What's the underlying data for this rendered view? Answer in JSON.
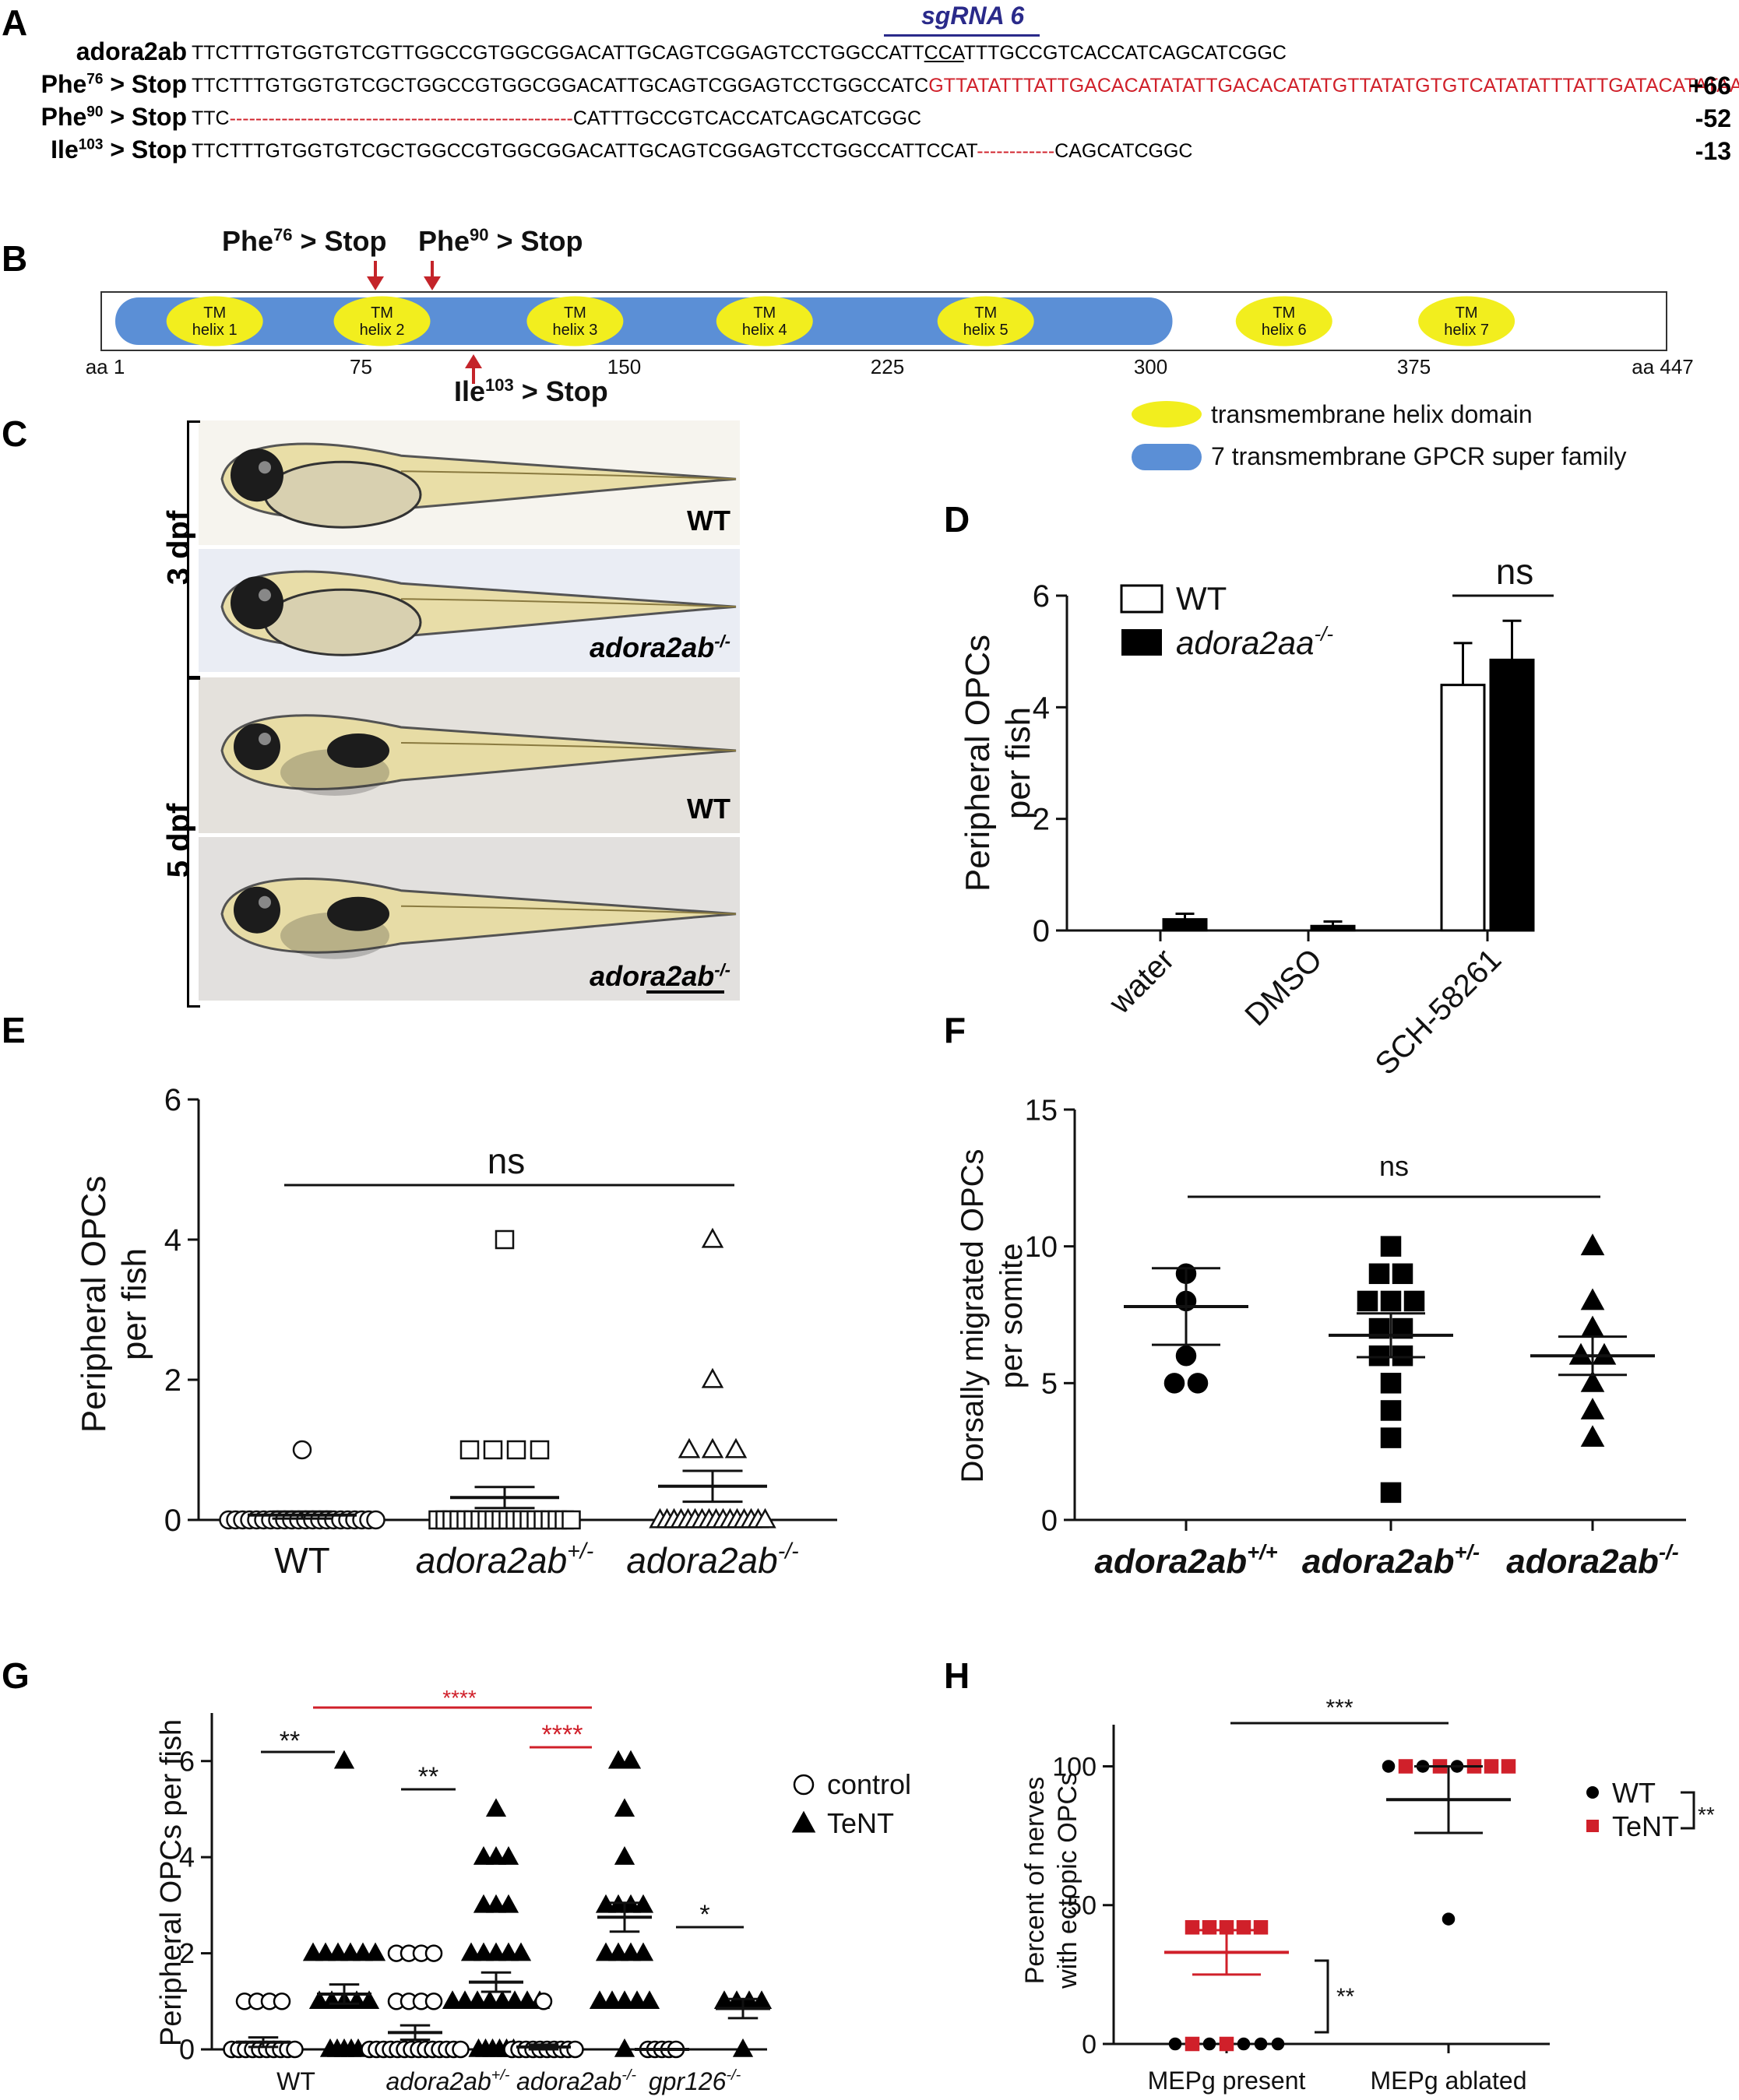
{
  "panelA": {
    "label": "A",
    "sgrna": "sgRNA 6",
    "rows": [
      {
        "name": "adora2ab",
        "sup": "",
        "suffix": "",
        "seq": "TTCTTTGTGGTGTCGTTGGCCGTGGCGGACATTGCAGTCGGAGTCCTGGCCATT",
        "pam": "CCA",
        "seq2": "TTTGCCGTCACCATCAGCATCGGC",
        "count": ""
      },
      {
        "name": "Phe",
        "sup": "76",
        "suffix": " > Stop",
        "seq": "TTCTTTGTGGTGTCGCTGGCCGTGGCGGACATTGCAGTCGGAGTCCTGGCCATC",
        "ins": "GTTATATTTATTGACACATATATTGACACATATGTTATATGTG",
        "seq2": "TCATATATTTATTGATACATATAA",
        "seq3": "CAT",
        "count": "+66"
      },
      {
        "name": "Phe",
        "sup": "90",
        "suffix": " > Stop",
        "seq": "TTC",
        "del": "-----------------------------------------------------",
        "seq2": "CATTTGCCGTCACCATCAGCATCGGC",
        "count": "-52"
      },
      {
        "name": "Ile",
        "sup": "103",
        "suffix": " > Stop",
        "seq": "TTCTTTGTGGTGTCGCTGGCCGTGGCGGACATTGCAGTCGGAGTCCTGGCCATTCCAT",
        "del": "------------",
        "seq2": "CAGCATCGGC",
        "count": "-13"
      }
    ]
  },
  "panelB": {
    "label": "B",
    "arrows": [
      {
        "name": "Phe",
        "sup": "76",
        "suffix": " > Stop"
      },
      {
        "name": "Phe",
        "sup": "90",
        "suffix": " > Stop"
      },
      {
        "name": "Ile",
        "sup": "103",
        "suffix": " > Stop"
      }
    ],
    "helices": [
      "TM\nhelix 1",
      "TM\nhelix 2",
      "TM\nhelix 3",
      "TM\nhelix 4",
      "TM\nhelix 5",
      "TM\nhelix 6",
      "TM\nhelix 7"
    ],
    "ticks": [
      "aa 1",
      "75",
      "150",
      "225",
      "300",
      "375",
      "aa 447"
    ],
    "legend": [
      "transmembrane helix domain",
      "7 transmembrane GPCR super family"
    ],
    "colors": {
      "helix": "#f2ee1e",
      "gpcr": "#5b8fd6"
    }
  },
  "panelC": {
    "label": "C",
    "groups": [
      "3 dpf",
      "5 dpf"
    ],
    "images": [
      "WT",
      "adora2ab-/-",
      "WT",
      "adora2ab-/-"
    ],
    "image_base": [
      "WT",
      "adora2ab",
      "WT",
      "adora2ab"
    ],
    "image_sup": [
      "",
      "-/-",
      "",
      "-/-"
    ]
  },
  "panelD": {
    "label": "D",
    "chart_data": {
      "type": "bar",
      "ylabel": "Peripheral OPCs\nper fish",
      "ylim": [
        0,
        6
      ],
      "yticks": [
        "0",
        "2",
        "4",
        "6"
      ],
      "categories": [
        "water",
        "DMSO",
        "SCH-58261"
      ],
      "series": [
        {
          "name": "WT",
          "values": [
            0,
            0,
            4.4
          ],
          "errors": [
            0,
            0,
            0.75
          ]
        },
        {
          "name": "adora2aa-/-",
          "values": [
            0.2,
            0.08,
            4.85
          ],
          "errors": [
            0.1,
            0.08,
            0.7
          ]
        }
      ],
      "legend": [
        "WT",
        "adora2aa",
        "-/-"
      ],
      "annotation": "ns"
    }
  },
  "panelE": {
    "label": "E",
    "chart_data": {
      "type": "scatter",
      "ylabel": "Peripheral OPCs\nper fish",
      "ylim": [
        0,
        6
      ],
      "yticks": [
        "0",
        "2",
        "4",
        "6"
      ],
      "categories": [
        "WT",
        "adora2ab+/-",
        "adora2ab-/-"
      ],
      "cat_base": [
        "WT",
        "adora2ab",
        "adora2ab"
      ],
      "cat_sup": [
        "",
        "+/-",
        "-/-"
      ],
      "groups": [
        {
          "mean": 0.07,
          "sem": 0.05,
          "points": {
            "0": 22,
            "1": 1
          }
        },
        {
          "mean": 0.32,
          "sem": 0.15,
          "points": {
            "0": 20,
            "1": 4,
            "4": 1
          }
        },
        {
          "mean": 0.48,
          "sem": 0.22,
          "points": {
            "0": 16,
            "1": 3,
            "2": 1,
            "4": 1
          }
        }
      ],
      "annotation": "ns"
    }
  },
  "panelF": {
    "label": "F",
    "chart_data": {
      "type": "scatter",
      "ylabel": "Dorsally migrated OPCs\nper somite",
      "ylim": [
        0,
        15
      ],
      "yticks": [
        "0",
        "5",
        "10",
        "15"
      ],
      "categories": [
        "adora2ab+/+",
        "adora2ab+/-",
        "adora2ab-/-"
      ],
      "cat_base": [
        "adora2ab",
        "adora2ab",
        "adora2ab"
      ],
      "cat_sup": [
        "+/+",
        "+/-",
        "-/-"
      ],
      "groups": [
        {
          "mean": 7.8,
          "sem": 1.4,
          "points": [
            9,
            8,
            6,
            5,
            5
          ]
        },
        {
          "mean": 6.75,
          "sem": 0.8,
          "points": [
            10,
            9,
            9,
            8,
            8,
            8,
            7,
            7,
            6,
            6,
            5,
            4,
            3,
            1
          ]
        },
        {
          "mean": 6.0,
          "sem": 0.7,
          "points": [
            10,
            8,
            7,
            6,
            6,
            5,
            4,
            3
          ]
        }
      ],
      "annotation": "ns"
    }
  },
  "panelG": {
    "label": "G",
    "chart_data": {
      "type": "scatter",
      "ylabel": "Peripheral OPCs per fish",
      "ylim": [
        0,
        7
      ],
      "yticks": [
        "0",
        "2",
        "4",
        "6"
      ],
      "categories": [
        "WT",
        "adora2ab+/-",
        "adora2ab-/-",
        "gpr126-/-"
      ],
      "cat_base": [
        "WT",
        "adora2ab",
        "adora2ab",
        "gpr126"
      ],
      "cat_sup": [
        "",
        "+/-",
        "-/-",
        "-/-"
      ],
      "series": [
        {
          "name": "control",
          "groups": [
            {
              "mean": 0.15,
              "sem": 0.1,
              "points": {
                "0": 10,
                "1": 4
              }
            },
            {
              "mean": 0.35,
              "sem": 0.15,
              "points": {
                "0": 14,
                "1": 4,
                "2": 4
              }
            },
            {
              "mean": 0.05,
              "sem": 0.05,
              "points": {
                "0": 10,
                "1": 1
              }
            },
            {
              "mean": 0,
              "sem": 0,
              "points": {
                "0": 5
              }
            }
          ]
        },
        {
          "name": "TeNT",
          "groups": [
            {
              "mean": 1.15,
              "sem": 0.2,
              "points": {
                "0": 5,
                "1": 5,
                "2": 6,
                "6": 1
              }
            },
            {
              "mean": 1.4,
              "sem": 0.2,
              "points": {
                "0": 6,
                "1": 8,
                "2": 5,
                "3": 3,
                "4": 3,
                "5": 1
              }
            },
            {
              "mean": 2.75,
              "sem": 0.3,
              "points": {
                "0": 1,
                "1": 5,
                "2": 4,
                "3": 4,
                "4": 1,
                "5": 1,
                "6": 2
              }
            },
            {
              "mean": 0.85,
              "sem": 0.2,
              "points": {
                "0": 1,
                "1": 4
              }
            }
          ]
        }
      ],
      "annotations": [
        "**",
        "**",
        "****",
        "*",
        "****"
      ],
      "legend": [
        "control",
        "TeNT"
      ]
    }
  },
  "panelH": {
    "label": "H",
    "chart_data": {
      "type": "scatter",
      "ylabel": "Percent of nerves\nwith ectopic OPCs",
      "ylim": [
        0,
        115
      ],
      "yticks": [
        "0",
        "50",
        "100"
      ],
      "categories": [
        "MEPg present",
        "MEPg ablated"
      ],
      "groups": [
        {
          "mean": 33,
          "sem": 8,
          "wt": [
            0,
            0,
            0,
            0,
            0
          ],
          "tent": [
            42,
            42,
            42,
            42,
            42,
            0,
            0
          ]
        },
        {
          "mean": 88,
          "sem": 12,
          "wt": [
            100,
            100,
            100,
            45
          ],
          "tent": [
            100,
            100,
            100,
            100,
            100
          ]
        }
      ],
      "annotations": [
        "***",
        "**",
        "**"
      ],
      "legend": [
        "WT",
        "TeNT"
      ],
      "colors": {
        "tent": "#d0202a"
      }
    }
  }
}
